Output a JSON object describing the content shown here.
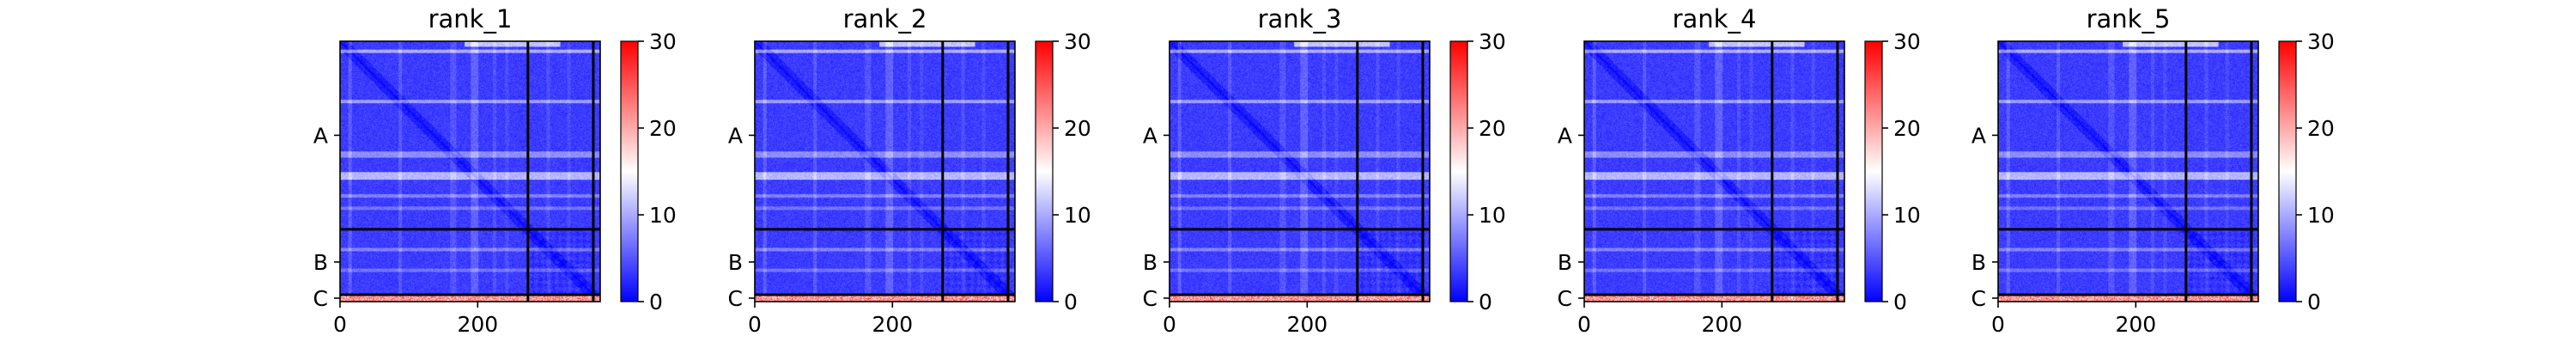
{
  "figure": {
    "panels": [
      {
        "title": "rank_1"
      },
      {
        "title": "rank_2"
      },
      {
        "title": "rank_3"
      },
      {
        "title": "rank_4"
      },
      {
        "title": "rank_5"
      }
    ]
  },
  "chart_data": {
    "type": "heatmap",
    "description_of_values": "Predicted aligned error matrices, one per ranked model",
    "panel_titles": [
      "rank_1",
      "rank_2",
      "rank_3",
      "rank_4",
      "rank_5"
    ],
    "x_range": [
      0,
      378
    ],
    "y_range": [
      0,
      378
    ],
    "x_ticks": [
      0,
      200
    ],
    "chain_labels": [
      "A",
      "B",
      "C"
    ],
    "chain_boundaries": [
      273,
      368
    ],
    "colorbar": {
      "range": [
        0,
        30
      ],
      "ticks": [
        0,
        10,
        20,
        30
      ],
      "colormap": "bwr",
      "colors": {
        "low": "#0000ff",
        "mid": "#ffffff",
        "high": "#ff0000"
      }
    },
    "boundary_line_color": "#000000",
    "grid": false
  }
}
